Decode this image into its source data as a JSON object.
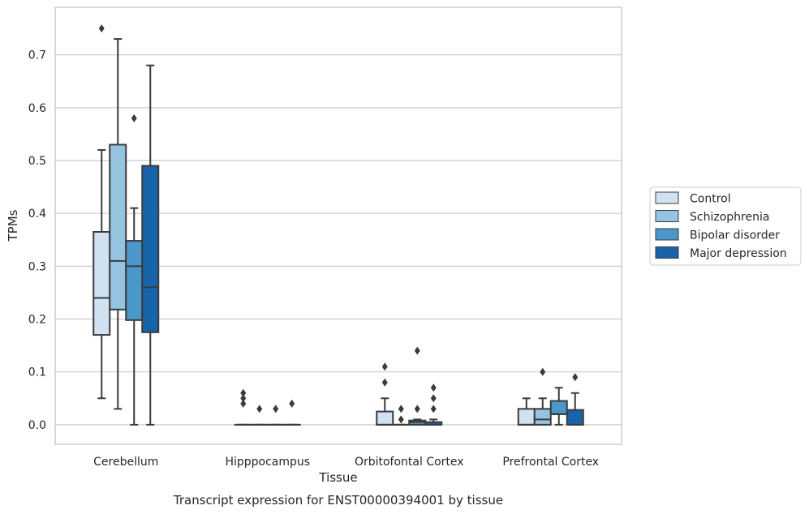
{
  "chart_data": {
    "type": "box",
    "caption": "Transcript expression for ENST00000394001 by tissue",
    "xlabel": "Tissue",
    "ylabel": "TPMs",
    "ylim": [
      -0.037,
      0.79
    ],
    "yticks": [
      0.0,
      0.1,
      0.2,
      0.3,
      0.4,
      0.5,
      0.6,
      0.7
    ],
    "ytick_labels": [
      "0.0",
      "0.1",
      "0.2",
      "0.3",
      "0.4",
      "0.5",
      "0.6",
      "0.7"
    ],
    "grid": true,
    "legend_position": "right",
    "categories": [
      "Cerebellum",
      "Hipppocampus",
      "Orbitofontal Cortex",
      "Prefrontal Cortex"
    ],
    "series": [
      {
        "name": "Control",
        "color": "#d0e1f2",
        "boxes": [
          {
            "whislo": 0.05,
            "q1": 0.17,
            "med": 0.24,
            "q3": 0.365,
            "whishi": 0.52,
            "fliers": [
              0.75
            ]
          },
          {
            "whislo": 0.0,
            "q1": 0.0,
            "med": 0.0,
            "q3": 0.0,
            "whishi": 0.0,
            "fliers": [
              0.04,
              0.05,
              0.06
            ]
          },
          {
            "whislo": 0.0,
            "q1": 0.0,
            "med": 0.0,
            "q3": 0.025,
            "whishi": 0.05,
            "fliers": [
              0.08,
              0.11
            ]
          },
          {
            "whislo": 0.0,
            "q1": 0.0,
            "med": 0.0,
            "q3": 0.03,
            "whishi": 0.05,
            "fliers": []
          }
        ]
      },
      {
        "name": "Schizophrenia",
        "color": "#94c4df",
        "boxes": [
          {
            "whislo": 0.03,
            "q1": 0.218,
            "med": 0.31,
            "q3": 0.53,
            "whishi": 0.73,
            "fliers": []
          },
          {
            "whislo": 0.0,
            "q1": 0.0,
            "med": 0.0,
            "q3": 0.0,
            "whishi": 0.0,
            "fliers": [
              0.03
            ]
          },
          {
            "whislo": 0.0,
            "q1": 0.0,
            "med": 0.0,
            "q3": 0.0,
            "whishi": 0.0,
            "fliers": [
              0.01,
              0.03
            ]
          },
          {
            "whislo": 0.0,
            "q1": 0.0,
            "med": 0.01,
            "q3": 0.03,
            "whishi": 0.05,
            "fliers": [
              0.1
            ]
          }
        ]
      },
      {
        "name": "Bipolar disorder",
        "color": "#4a98c9",
        "boxes": [
          {
            "whislo": 0.0,
            "q1": 0.198,
            "med": 0.3,
            "q3": 0.348,
            "whishi": 0.41,
            "fliers": [
              0.58
            ]
          },
          {
            "whislo": 0.0,
            "q1": 0.0,
            "med": 0.0,
            "q3": 0.0,
            "whishi": 0.0,
            "fliers": [
              0.03
            ]
          },
          {
            "whislo": 0.0,
            "q1": 0.0,
            "med": 0.005,
            "q3": 0.008,
            "whishi": 0.01,
            "fliers": [
              0.03,
              0.14
            ]
          },
          {
            "whislo": 0.0,
            "q1": 0.02,
            "med": 0.02,
            "q3": 0.045,
            "whishi": 0.07,
            "fliers": []
          }
        ]
      },
      {
        "name": "Major depression",
        "color": "#1764ab",
        "boxes": [
          {
            "whislo": 0.0,
            "q1": 0.175,
            "med": 0.26,
            "q3": 0.49,
            "whishi": 0.68,
            "fliers": []
          },
          {
            "whislo": 0.0,
            "q1": 0.0,
            "med": 0.0,
            "q3": 0.0,
            "whishi": 0.0,
            "fliers": [
              0.04
            ]
          },
          {
            "whislo": 0.0,
            "q1": 0.0,
            "med": 0.0,
            "q3": 0.005,
            "whishi": 0.01,
            "fliers": [
              0.03,
              0.05,
              0.07
            ]
          },
          {
            "whislo": 0.0,
            "q1": 0.0,
            "med": 0.0,
            "q3": 0.028,
            "whishi": 0.06,
            "fliers": [
              0.09
            ]
          }
        ]
      }
    ]
  }
}
